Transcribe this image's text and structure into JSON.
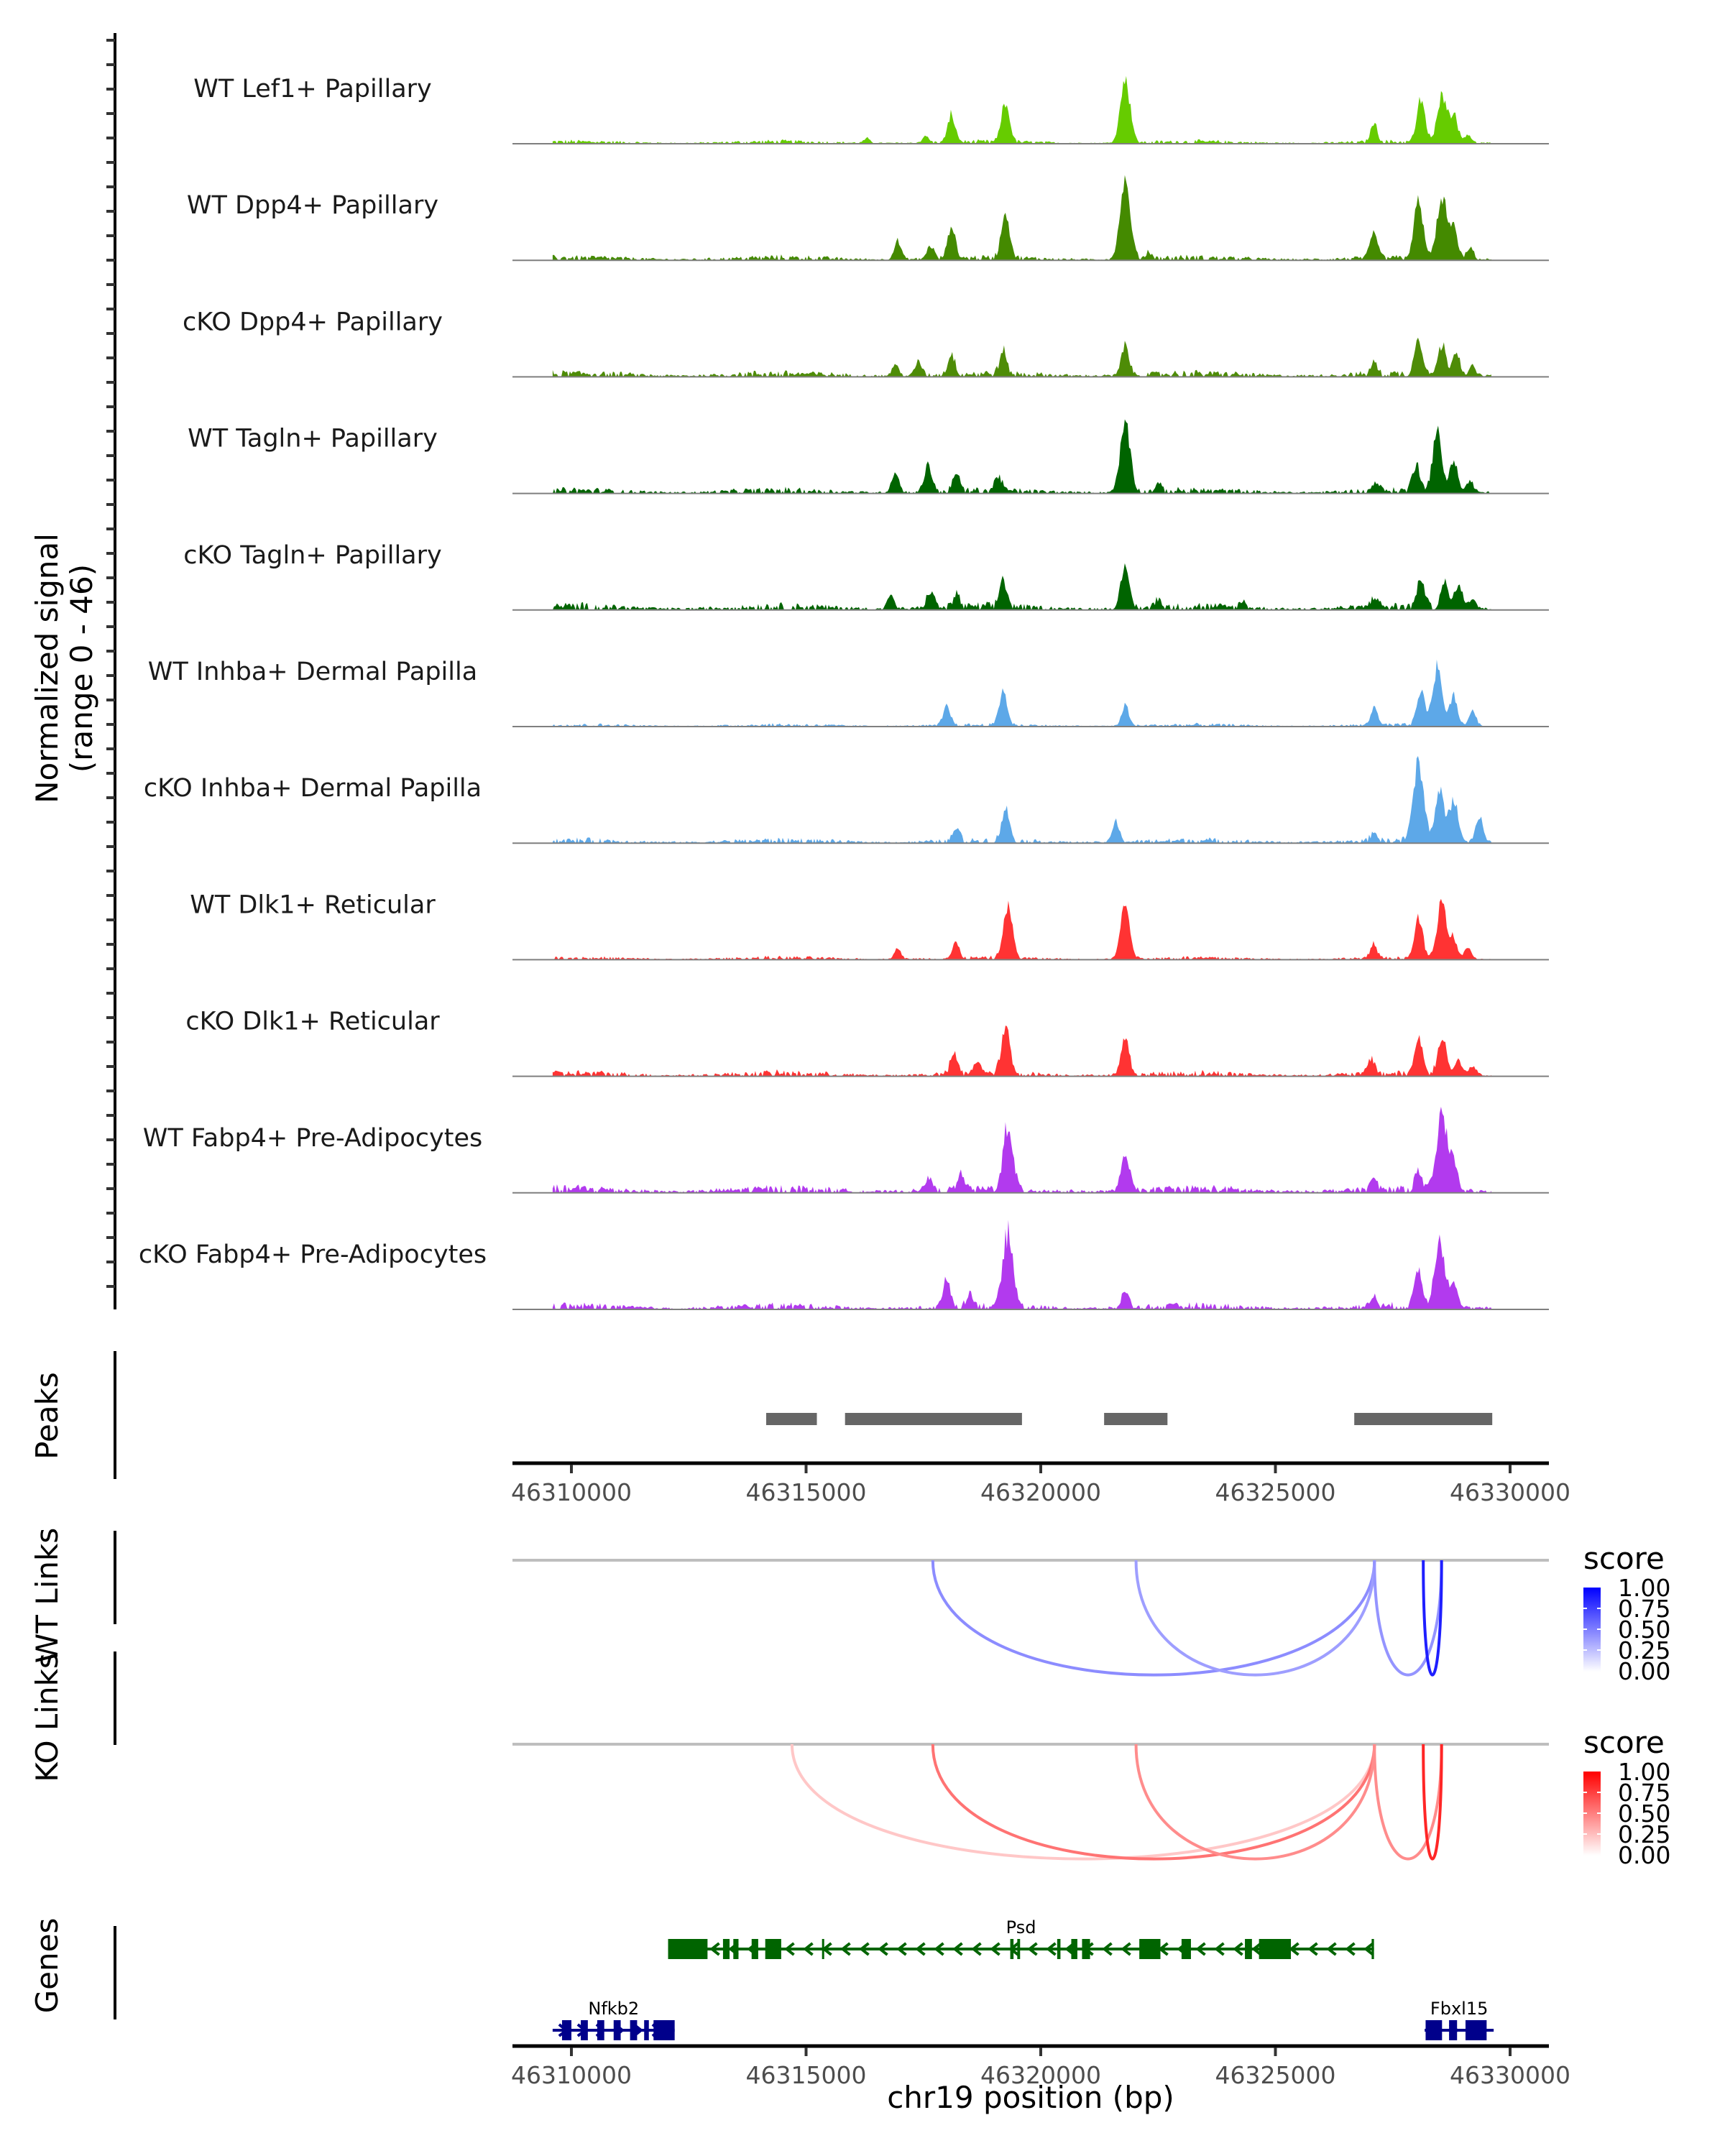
{
  "chart_data": {
    "type": "area",
    "title": "",
    "region": {
      "chrom": "chr19",
      "start": 46308800,
      "end": 46330900
    },
    "xlabel": "chr19 position (bp)",
    "x_ticks": [
      46310000,
      46315000,
      46320000,
      46325000,
      46330000
    ],
    "x_tick_labels": [
      "46310000",
      "46315000",
      "46320000",
      "46325000",
      "46330000"
    ],
    "coverage": {
      "ylabel_line1": "Normalized signal",
      "ylabel_line2": "(range 0 - 46)",
      "ylim": [
        0,
        46
      ],
      "signal_start": 46309600,
      "signal_end": 46329600,
      "tracks": [
        {
          "name": "WT Lef1+ Papillary",
          "color": "#66CC00",
          "noise": 1.2,
          "peaks": [
            [
              46316300,
              2
            ],
            [
              46317550,
              3
            ],
            [
              46318100,
              12
            ],
            [
              46319250,
              17
            ],
            [
              46321800,
              28
            ],
            [
              46327100,
              8
            ],
            [
              46328100,
              18
            ],
            [
              46328550,
              22
            ],
            [
              46328800,
              13
            ],
            [
              46329100,
              4
            ]
          ]
        },
        {
          "name": "WT Dpp4+ Papillary",
          "color": "#448A00",
          "noise": 1.6,
          "peaks": [
            [
              46316950,
              8
            ],
            [
              46317650,
              6
            ],
            [
              46318100,
              13
            ],
            [
              46319250,
              19
            ],
            [
              46321800,
              32
            ],
            [
              46322300,
              3
            ],
            [
              46327100,
              11
            ],
            [
              46328050,
              24
            ],
            [
              46328550,
              27
            ],
            [
              46328800,
              13
            ],
            [
              46329150,
              5
            ]
          ]
        },
        {
          "name": "cKO Dpp4+ Papillary",
          "color": "#4E8C07",
          "noise": 2.0,
          "peaks": [
            [
              46316900,
              5
            ],
            [
              46317400,
              6
            ],
            [
              46318100,
              9
            ],
            [
              46319200,
              10
            ],
            [
              46321800,
              13
            ],
            [
              46327100,
              5
            ],
            [
              46328050,
              16
            ],
            [
              46328550,
              13
            ],
            [
              46328850,
              11
            ],
            [
              46329200,
              4
            ]
          ]
        },
        {
          "name": "WT Tagln+ Papillary",
          "color": "#006400",
          "noise": 1.8,
          "peaks": [
            [
              46316900,
              9
            ],
            [
              46317600,
              12
            ],
            [
              46318200,
              8
            ],
            [
              46319100,
              7
            ],
            [
              46321800,
              30
            ],
            [
              46322500,
              3
            ],
            [
              46327150,
              4
            ],
            [
              46328000,
              12
            ],
            [
              46328450,
              25
            ],
            [
              46328800,
              14
            ],
            [
              46329150,
              5
            ]
          ]
        },
        {
          "name": "cKO Tagln+ Papillary",
          "color": "#006400",
          "noise": 2.2,
          "peaks": [
            [
              46316800,
              6
            ],
            [
              46317650,
              8
            ],
            [
              46318200,
              6
            ],
            [
              46319200,
              12
            ],
            [
              46321800,
              19
            ],
            [
              46322500,
              4
            ],
            [
              46324300,
              3
            ],
            [
              46327100,
              5
            ],
            [
              46328100,
              12
            ],
            [
              46328600,
              11
            ],
            [
              46328900,
              11
            ],
            [
              46329200,
              5
            ]
          ]
        },
        {
          "name": "WT Inhba+ Dermal Papilla",
          "color": "#5DA8E8",
          "noise": 1.0,
          "peaks": [
            [
              46318000,
              9
            ],
            [
              46319200,
              15
            ],
            [
              46321800,
              9
            ],
            [
              46327100,
              8
            ],
            [
              46328100,
              15
            ],
            [
              46328450,
              26
            ],
            [
              46328800,
              13
            ],
            [
              46329200,
              7
            ]
          ]
        },
        {
          "name": "cKO Inhba+ Dermal Papilla",
          "color": "#5DA8E8",
          "noise": 1.6,
          "peaks": [
            [
              46318200,
              6
            ],
            [
              46319250,
              14
            ],
            [
              46321600,
              9
            ],
            [
              46327100,
              4
            ],
            [
              46328050,
              34
            ],
            [
              46328500,
              22
            ],
            [
              46328800,
              19
            ],
            [
              46329350,
              11
            ]
          ]
        },
        {
          "name": "WT Dlk1+ Reticular",
          "color": "#FF3333",
          "noise": 1.1,
          "peaks": [
            [
              46316950,
              5
            ],
            [
              46318200,
              7
            ],
            [
              46319300,
              23
            ],
            [
              46321800,
              24
            ],
            [
              46327100,
              6
            ],
            [
              46328050,
              17
            ],
            [
              46328550,
              25
            ],
            [
              46328800,
              9
            ],
            [
              46329100,
              5
            ]
          ]
        },
        {
          "name": "cKO Dlk1+ Reticular",
          "color": "#FF3333",
          "noise": 1.8,
          "peaks": [
            [
              46318150,
              9
            ],
            [
              46318650,
              6
            ],
            [
              46319250,
              20
            ],
            [
              46321800,
              16
            ],
            [
              46327050,
              7
            ],
            [
              46328050,
              16
            ],
            [
              46328550,
              17
            ],
            [
              46328900,
              7
            ],
            [
              46329200,
              4
            ]
          ]
        },
        {
          "name": "WT Fabp4+ Pre-Adipocytes",
          "color": "#B23AEE",
          "noise": 2.4,
          "peaks": [
            [
              46317600,
              6
            ],
            [
              46318300,
              7
            ],
            [
              46319300,
              28
            ],
            [
              46321800,
              17
            ],
            [
              46327100,
              5
            ],
            [
              46328050,
              8
            ],
            [
              46328550,
              33
            ],
            [
              46328800,
              13
            ]
          ]
        },
        {
          "name": "cKO Fabp4+ Pre-Adipocytes",
          "color": "#B23AEE",
          "noise": 2.0,
          "peaks": [
            [
              46318000,
              12
            ],
            [
              46318500,
              6
            ],
            [
              46319300,
              32
            ],
            [
              46321800,
              8
            ],
            [
              46327100,
              5
            ],
            [
              46328050,
              16
            ],
            [
              46328500,
              30
            ],
            [
              46328800,
              11
            ]
          ]
        }
      ]
    },
    "peaks_track": {
      "label": "Peaks",
      "color": "#666666",
      "regions": [
        [
          46314150,
          46315230
        ],
        [
          46315830,
          46319600
        ],
        [
          46321350,
          46322700
        ],
        [
          46326680,
          46329620
        ]
      ]
    },
    "links": [
      {
        "label": "WT Links",
        "legend_title": "score",
        "legend_ticks": [
          "1.00",
          "0.75",
          "0.50",
          "0.25",
          "0.00"
        ],
        "color_low": "#FFFFFF",
        "color_high": "#0000FF",
        "items": [
          {
            "start": 46317700,
            "end": 46327110,
            "score": 0.45
          },
          {
            "start": 46322030,
            "end": 46327110,
            "score": 0.38
          },
          {
            "start": 46327110,
            "end": 46328540,
            "score": 0.42
          },
          {
            "start": 46328150,
            "end": 46328540,
            "score": 0.88
          }
        ]
      },
      {
        "label": "KO Links",
        "legend_title": "score",
        "legend_ticks": [
          "1.00",
          "0.75",
          "0.50",
          "0.25",
          "0.00"
        ],
        "color_low": "#FFFFFF",
        "color_high": "#FF0000",
        "items": [
          {
            "start": 46314700,
            "end": 46327110,
            "score": 0.22
          },
          {
            "start": 46317700,
            "end": 46327110,
            "score": 0.55
          },
          {
            "start": 46322030,
            "end": 46327110,
            "score": 0.45
          },
          {
            "start": 46327110,
            "end": 46328540,
            "score": 0.45
          },
          {
            "start": 46328150,
            "end": 46328540,
            "score": 0.85
          }
        ]
      }
    ],
    "genes": {
      "label": "Genes",
      "items": [
        {
          "name": "Psd",
          "strand": "-",
          "color": "#006400",
          "row": 0,
          "start": 46312060,
          "end": 46327100,
          "exons": [
            [
              46312060,
              46312900
            ],
            [
              46313230,
              46313370
            ],
            [
              46313450,
              46313560
            ],
            [
              46313840,
              46313980
            ],
            [
              46314130,
              46314470
            ],
            [
              46315340,
              46315380
            ],
            [
              46319350,
              46319420
            ],
            [
              46319500,
              46319560
            ],
            [
              46320350,
              46320420
            ],
            [
              46320650,
              46320780
            ],
            [
              46320880,
              46321050
            ],
            [
              46322100,
              46322550
            ],
            [
              46323000,
              46323200
            ],
            [
              46324350,
              46324500
            ],
            [
              46324650,
              46325330
            ],
            [
              46327050,
              46327100
            ]
          ]
        },
        {
          "name": "Nfkb2",
          "strand": "+",
          "color": "#00008B",
          "row": 1,
          "start": 46309600,
          "end": 46312200,
          "exons": [
            [
              46309800,
              46310000
            ],
            [
              46310200,
              46310350
            ],
            [
              46310550,
              46310700
            ],
            [
              46310900,
              46311050
            ],
            [
              46311250,
              46311400
            ],
            [
              46311550,
              46311650
            ],
            [
              46311750,
              46312200
            ]
          ]
        },
        {
          "name": "Fbxl15",
          "strand": "+",
          "color": "#00008B",
          "row": 1,
          "start": 46328180,
          "end": 46329650,
          "exons": [
            [
              46328200,
              46328550
            ],
            [
              46328700,
              46328870
            ],
            [
              46329050,
              46329500
            ]
          ]
        }
      ]
    }
  }
}
